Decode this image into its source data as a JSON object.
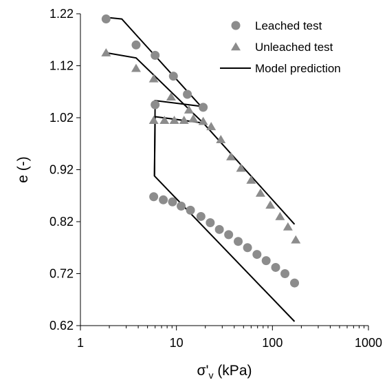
{
  "chart_data": {
    "type": "scatter",
    "title": "",
    "xlabel": "σ'v (kPa)",
    "xlabel_parts": {
      "main": "σ'",
      "subscript": "v",
      "unit": " (kPa)"
    },
    "ylabel": "e (-)",
    "x_scale": "log",
    "xlim": [
      1,
      1000
    ],
    "ylim": [
      0.62,
      1.22
    ],
    "x_ticks": [
      1,
      10,
      100,
      1000
    ],
    "x_tick_labels": [
      "1",
      "10",
      "100",
      "1000"
    ],
    "y_ticks": [
      0.62,
      0.72,
      0.82,
      0.92,
      1.02,
      1.12,
      1.22
    ],
    "y_tick_labels": [
      "0.62",
      "0.72",
      "0.82",
      "0.92",
      "1.02",
      "1.12",
      "1.22"
    ],
    "grid": false,
    "legend_position": "top-right",
    "series": [
      {
        "name": "Leached test",
        "marker": "circle",
        "color": "#8c8c8c",
        "points": [
          [
            1.85,
            1.21
          ],
          [
            3.8,
            1.16
          ],
          [
            6.0,
            1.14
          ],
          [
            9.3,
            1.1
          ],
          [
            13,
            1.065
          ],
          [
            19,
            1.04
          ],
          [
            6.0,
            1.045
          ],
          [
            5.8,
            0.868
          ],
          [
            7.3,
            0.862
          ],
          [
            9.1,
            0.858
          ],
          [
            11.2,
            0.85
          ],
          [
            14,
            0.842
          ],
          [
            18,
            0.83
          ],
          [
            22.5,
            0.818
          ],
          [
            28,
            0.805
          ],
          [
            35,
            0.795
          ],
          [
            44,
            0.782
          ],
          [
            55,
            0.77
          ],
          [
            69,
            0.757
          ],
          [
            86,
            0.745
          ],
          [
            108,
            0.732
          ],
          [
            135,
            0.72
          ],
          [
            170,
            0.702
          ]
        ]
      },
      {
        "name": "Unleached test",
        "marker": "triangle",
        "color": "#8c8c8c",
        "points": [
          [
            1.85,
            1.145
          ],
          [
            3.8,
            1.115
          ],
          [
            5.8,
            1.095
          ],
          [
            8.8,
            1.06
          ],
          [
            13.5,
            1.035
          ],
          [
            5.8,
            1.015
          ],
          [
            7.5,
            1.015
          ],
          [
            9.5,
            1.015
          ],
          [
            12,
            1.015
          ],
          [
            15,
            1.018
          ],
          [
            19,
            1.013
          ],
          [
            23,
            1.003
          ],
          [
            29,
            0.978
          ],
          [
            37,
            0.945
          ],
          [
            47,
            0.923
          ],
          [
            60,
            0.9
          ],
          [
            75,
            0.875
          ],
          [
            95,
            0.852
          ],
          [
            120,
            0.83
          ],
          [
            145,
            0.81
          ],
          [
            175,
            0.785
          ]
        ]
      },
      {
        "name": "Model prediction",
        "marker": "line",
        "color": "#000000",
        "segments": [
          [
            [
              1.85,
              1.213
            ],
            [
              2.7,
              1.21
            ],
            [
              4.0,
              1.175
            ],
            [
              18,
              1.042
            ],
            [
              6.0,
              1.053
            ],
            [
              5.9,
              0.908
            ],
            [
              170,
              0.628
            ]
          ],
          [
            [
              1.85,
              1.145
            ],
            [
              3.8,
              1.135
            ],
            [
              19,
              1.01
            ],
            [
              6.0,
              1.022
            ],
            [
              5.9,
              0.908
            ]
          ],
          [
            [
              19,
              1.01
            ],
            [
              170,
              0.815
            ]
          ]
        ]
      }
    ]
  }
}
